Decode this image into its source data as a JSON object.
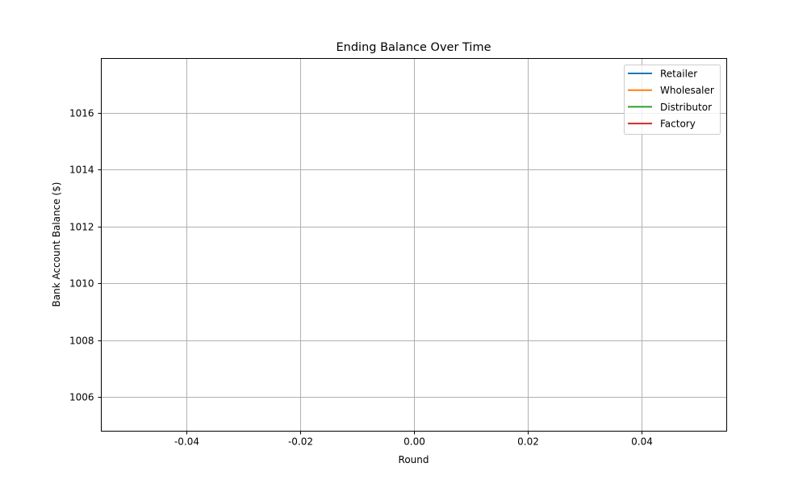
{
  "chart_data": {
    "type": "line",
    "title": "Ending Balance Over Time",
    "xlabel": "Round",
    "ylabel": "Bank Account Balance ($)",
    "xlim": [
      -0.055,
      0.055
    ],
    "ylim": [
      1004.8,
      1017.9
    ],
    "x_ticks": [
      -0.04,
      -0.02,
      0.0,
      0.02,
      0.04
    ],
    "x_tick_labels": [
      "-0.04",
      "-0.02",
      "0.00",
      "0.02",
      "0.04"
    ],
    "y_ticks": [
      1006,
      1008,
      1010,
      1012,
      1014,
      1016
    ],
    "y_tick_labels": [
      "1006",
      "1008",
      "1010",
      "1012",
      "1014",
      "1016"
    ],
    "grid": true,
    "legend_position": "top-right",
    "series": [
      {
        "name": "Retailer",
        "color": "#1f77b4",
        "x": [],
        "values": []
      },
      {
        "name": "Wholesaler",
        "color": "#ff7f0e",
        "x": [],
        "values": []
      },
      {
        "name": "Distributor",
        "color": "#2ca02c",
        "x": [],
        "values": []
      },
      {
        "name": "Factory",
        "color": "#d62728",
        "x": [],
        "values": []
      }
    ]
  }
}
